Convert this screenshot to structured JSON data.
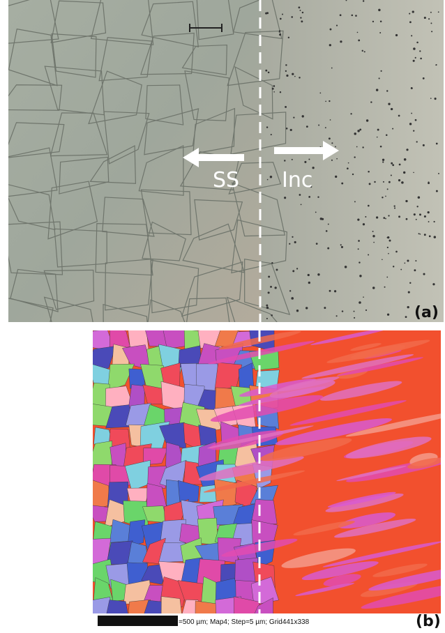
{
  "panel_a": {
    "left_label": "SS",
    "right_label": "Inc",
    "label": "(a)"
  },
  "panel_b": {
    "label": "(b)",
    "scale_caption": "=500 µm; Map4; Step=5 µm; Grid441x338"
  }
}
